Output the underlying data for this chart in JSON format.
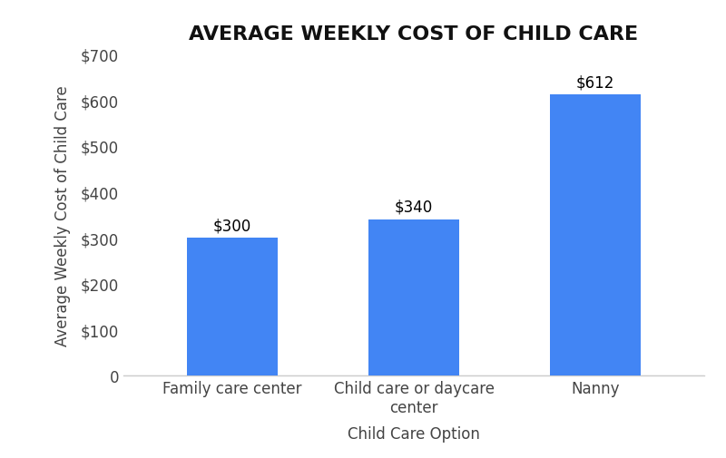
{
  "title": "AVERAGE WEEKLY COST OF CHILD CARE",
  "categories": [
    "Family care center",
    "Child care or daycare\ncenter",
    "Nanny"
  ],
  "values": [
    300,
    340,
    612
  ],
  "bar_color": "#4285F4",
  "xlabel": "Child Care Option",
  "ylabel": "Average Weekly Cost of Child Care",
  "ylim": [
    0,
    700
  ],
  "yticks": [
    0,
    100,
    200,
    300,
    400,
    500,
    600,
    700
  ],
  "bar_labels": [
    "$300",
    "$340",
    "$612"
  ],
  "title_fontsize": 16,
  "axis_label_fontsize": 12,
  "tick_fontsize": 12,
  "bar_label_fontsize": 12,
  "background_color": "#ffffff"
}
